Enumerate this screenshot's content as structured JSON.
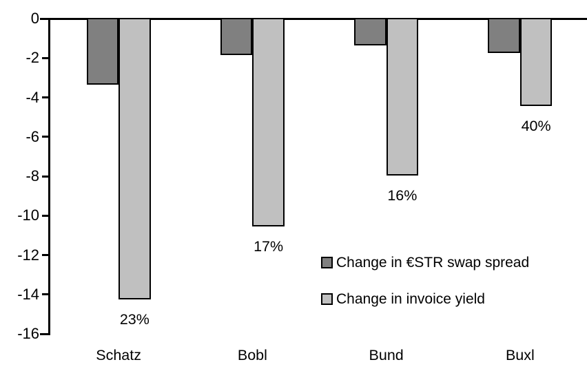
{
  "chart_data": {
    "type": "bar",
    "title": "",
    "xlabel": "",
    "ylabel": "",
    "categories": [
      "Schatz",
      "Bobl",
      "Bund",
      "Buxl"
    ],
    "series": [
      {
        "name": "Change in €STR swap spread",
        "color": "#808080",
        "values": [
          -3.3,
          -1.8,
          -1.3,
          -1.7
        ]
      },
      {
        "name": "Change in invoice yield",
        "color": "#c0c0c0",
        "values": [
          -14.2,
          -10.5,
          -7.9,
          -4.4
        ],
        "data_labels": [
          "23%",
          "17%",
          "16%",
          "40%"
        ]
      }
    ],
    "ylim": [
      -16,
      0
    ],
    "y_ticks": [
      0,
      -2,
      -4,
      -6,
      -8,
      -10,
      -12,
      -14,
      -16
    ],
    "grid": false,
    "legend_position": "inside-right",
    "bar_outline_color": "#000000",
    "axis_color": "#000000",
    "background": "#ffffff"
  }
}
